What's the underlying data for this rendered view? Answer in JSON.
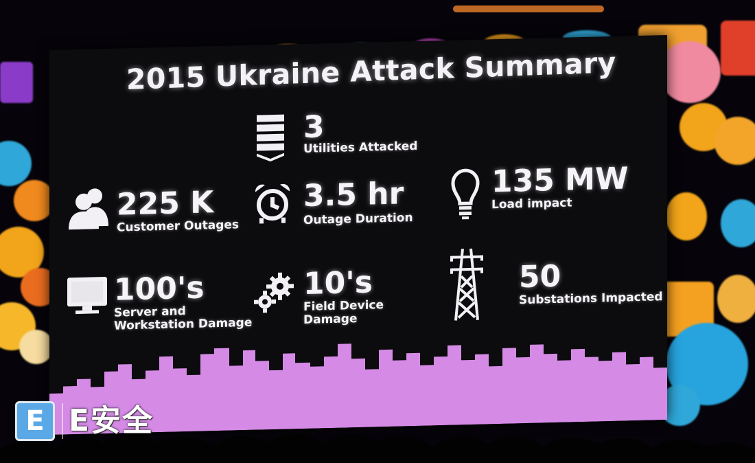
{
  "title": "2015 Ukraine Attack Summary",
  "stats": [
    {
      "value": "3",
      "label": "Utilities Attacked",
      "icon": "server-stack-icon"
    },
    {
      "value": "225 K",
      "label": "Customer Outages",
      "icon": "people-icon"
    },
    {
      "value": "3.5 hr",
      "label": "Outage Duration",
      "icon": "alarm-clock-icon"
    },
    {
      "value": "135 MW",
      "label": "Load impact",
      "icon": "light-bulb-icon"
    },
    {
      "value": "100's",
      "label_lines": [
        "Server and",
        "Workstation Damage"
      ],
      "icon": "monitor-icon"
    },
    {
      "value": "10's",
      "label_lines": [
        "Field Device",
        "Damage"
      ],
      "icon": "gears-icon"
    },
    {
      "value": "50",
      "label": "Substations Impacted",
      "icon": "transmission-tower-icon"
    }
  ],
  "watermark": {
    "logo_letter": "E",
    "text": "E安全"
  },
  "colors": {
    "skyline": "#d58ae6",
    "text": "#f6f4f8",
    "background": "#0c0b0e",
    "watermark_blue": "#5aa9e6"
  }
}
